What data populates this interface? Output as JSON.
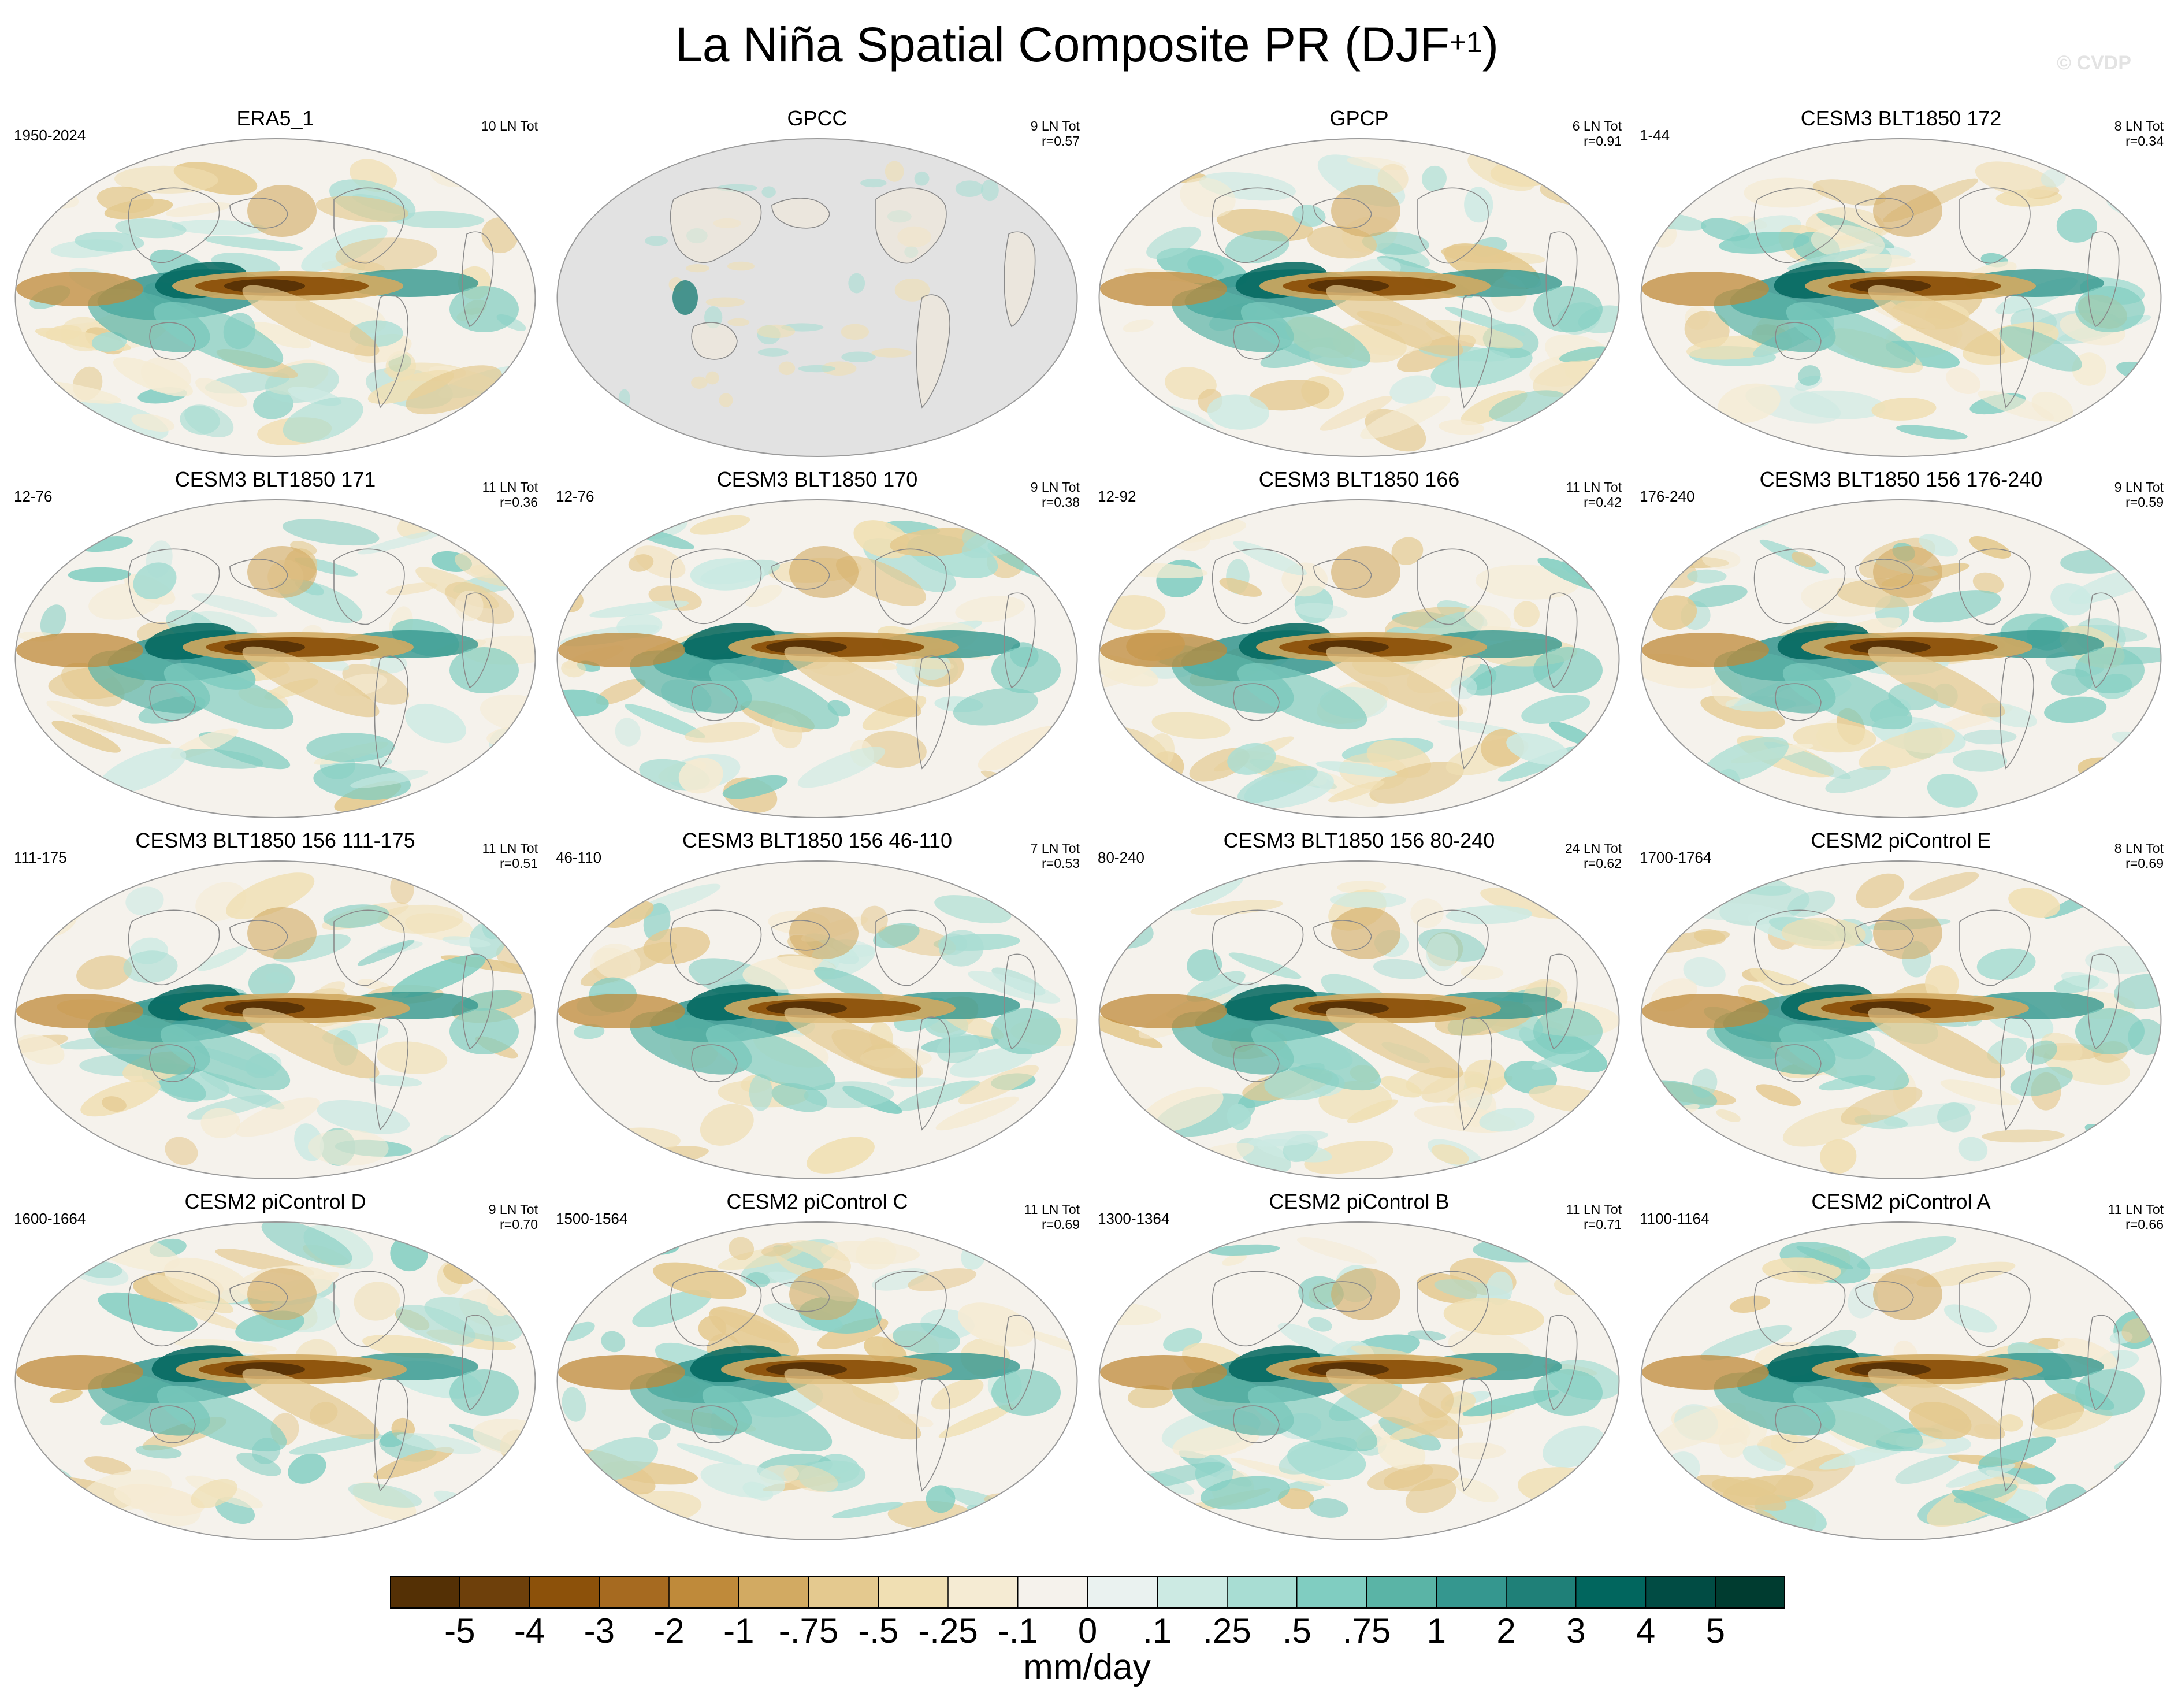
{
  "title": {
    "main": "La Niña Spatial Composite PR (DJF",
    "sup": "+1",
    "close": ")"
  },
  "watermark": "© CVDP",
  "colors": {
    "land_mask": "#e2e2e2",
    "coast": "#8a8a8a"
  },
  "panels": [
    {
      "title": "ERA5_1",
      "period": "1950-2024",
      "events": "10 LN Tot",
      "r": "",
      "style": 0
    },
    {
      "title": "GPCC",
      "period": "",
      "events": "9 LN Tot",
      "r": "r=0.57",
      "style": 99
    },
    {
      "title": "GPCP",
      "period": "",
      "events": "6 LN Tot",
      "r": "r=0.91",
      "style": 1
    },
    {
      "title": "CESM3 BLT1850 172",
      "period": "1-44",
      "events": "8 LN Tot",
      "r": "r=0.34",
      "style": 2
    },
    {
      "title": "CESM3 BLT1850 171",
      "period": "12-76",
      "events": "11 LN Tot",
      "r": "r=0.36",
      "style": 3
    },
    {
      "title": "CESM3 BLT1850 170",
      "period": "12-76",
      "events": "9 LN Tot",
      "r": "r=0.38",
      "style": 4
    },
    {
      "title": "CESM3 BLT1850 166",
      "period": "12-92",
      "events": "11 LN Tot",
      "r": "r=0.42",
      "style": 5
    },
    {
      "title": "CESM3 BLT1850 156 176-240",
      "period": "176-240",
      "events": "9 LN Tot",
      "r": "r=0.59",
      "style": 6
    },
    {
      "title": "CESM3 BLT1850 156 111-175",
      "period": "111-175",
      "events": "11 LN Tot",
      "r": "r=0.51",
      "style": 7
    },
    {
      "title": "CESM3 BLT1850 156 46-110",
      "period": "46-110",
      "events": "7 LN Tot",
      "r": "r=0.53",
      "style": 8
    },
    {
      "title": "CESM3 BLT1850 156 80-240",
      "period": "80-240",
      "events": "24 LN Tot",
      "r": "r=0.62",
      "style": 9
    },
    {
      "title": "CESM2 piControl E",
      "period": "1700-1764",
      "events": "8 LN Tot",
      "r": "r=0.69",
      "style": 10
    },
    {
      "title": "CESM2 piControl D",
      "period": "1600-1664",
      "events": "9 LN Tot",
      "r": "r=0.70",
      "style": 11
    },
    {
      "title": "CESM2 piControl C",
      "period": "1500-1564",
      "events": "11 LN Tot",
      "r": "r=0.69",
      "style": 12
    },
    {
      "title": "CESM2 piControl B",
      "period": "1300-1364",
      "events": "11 LN Tot",
      "r": "r=0.71",
      "style": 13
    },
    {
      "title": "CESM2 piControl A",
      "period": "1100-1164",
      "events": "11 LN Tot",
      "r": "r=0.66",
      "style": 14
    }
  ],
  "colorbar": {
    "units": "mm/day",
    "colors": [
      "#543005",
      "#6e400b",
      "#8c510a",
      "#a66a20",
      "#bf8a3a",
      "#d2aa62",
      "#e4c98f",
      "#f0dfb3",
      "#f5ebd3",
      "#f5f2ec",
      "#eaf2f0",
      "#cceae3",
      "#a8ddd3",
      "#80cdc1",
      "#5ab4a6",
      "#35978f",
      "#1f8078",
      "#01665e",
      "#014c44",
      "#003c30"
    ],
    "labels": [
      "-5",
      "-4",
      "-3",
      "-2",
      "-1",
      "-.75",
      "-.5",
      "-.25",
      "-.1",
      "0",
      ".1",
      ".25",
      ".5",
      ".75",
      "1",
      "2",
      "3",
      "4",
      "5"
    ]
  }
}
